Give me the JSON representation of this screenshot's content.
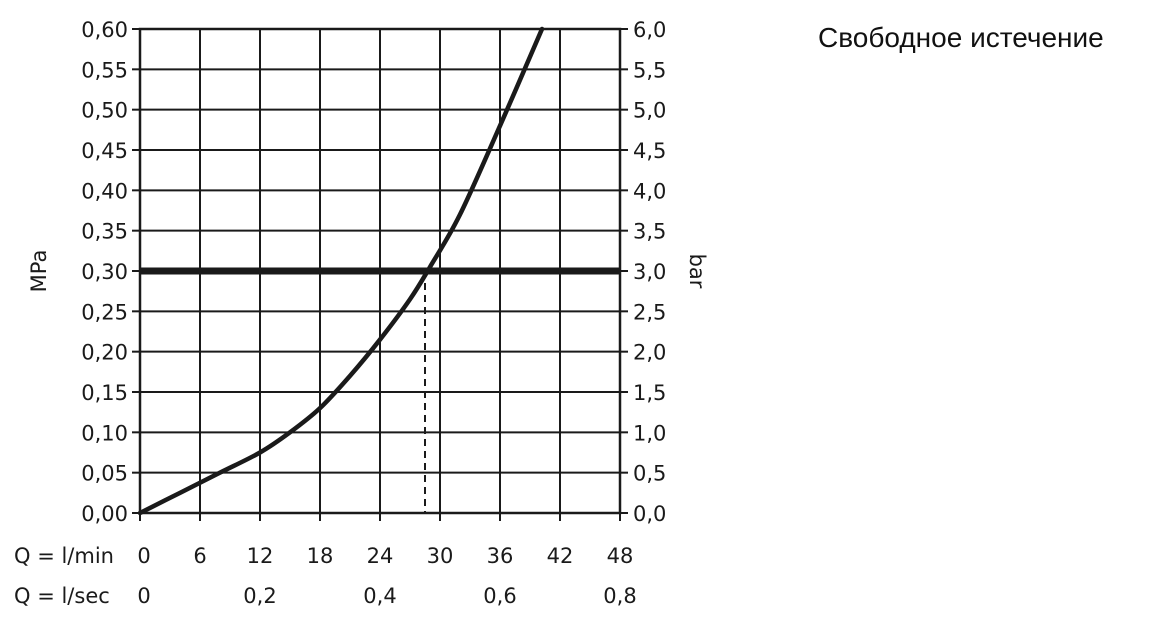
{
  "title": "Свободное истечение",
  "chart_data": {
    "type": "line",
    "title": "Свободное истечение",
    "ylabel_left": "MPa",
    "ylabel_right": "bar",
    "x_row1_label": "Q = l/min",
    "x_row2_label": "Q = l/sec",
    "xlim": [
      0,
      48
    ],
    "ylim": [
      0,
      0.6
    ],
    "grid": true,
    "x_ticks_lmin": [
      "0",
      "6",
      "12",
      "18",
      "24",
      "30",
      "36",
      "42",
      "48"
    ],
    "x_ticks_lsec": [
      {
        "value": 0,
        "label": "0"
      },
      {
        "value": 12,
        "label": "0,2"
      },
      {
        "value": 24,
        "label": "0,4"
      },
      {
        "value": 36,
        "label": "0,6"
      },
      {
        "value": 48,
        "label": "0,8"
      }
    ],
    "y_ticks_mpa": [
      "0,00",
      "0,05",
      "0,10",
      "0,15",
      "0,20",
      "0,25",
      "0,30",
      "0,35",
      "0,40",
      "0,45",
      "0,50",
      "0,55",
      "0,60"
    ],
    "y_ticks_bar": [
      "0,0",
      "0,5",
      "1,0",
      "1,5",
      "2,0",
      "2,5",
      "3,0",
      "3,5",
      "4,0",
      "4,5",
      "5,0",
      "5,5",
      "6,0"
    ],
    "series": [
      {
        "x": [
          0,
          4,
          8,
          12,
          15,
          18,
          21,
          24,
          27,
          29,
          32,
          36,
          40.2
        ],
        "y": [
          0,
          0.025,
          0.05,
          0.075,
          0.1,
          0.13,
          0.17,
          0.215,
          0.265,
          0.305,
          0.37,
          0.48,
          0.6
        ]
      }
    ],
    "reference_line": {
      "y": 0.3
    },
    "marker_dashed": {
      "x": 28.5,
      "y": 0.3
    },
    "colors": {
      "line": "#1a1a1a",
      "grid": "#1a1a1a"
    }
  }
}
